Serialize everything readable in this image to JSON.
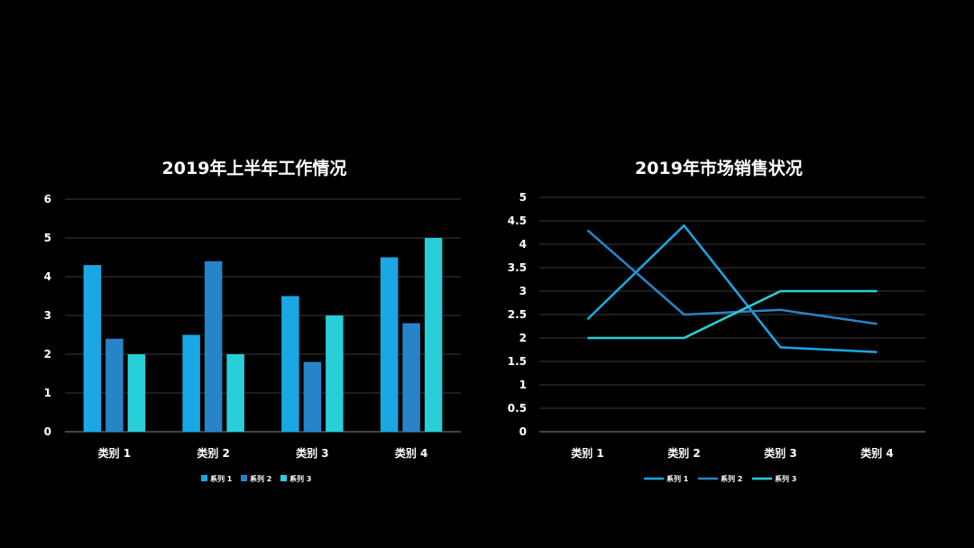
{
  "colors": {
    "background": "#000000",
    "grid": "#3a3a3a",
    "axis": "#8a8a8a",
    "text": "#ffffff"
  },
  "chart_data": [
    {
      "type": "bar",
      "title": "2019年上半年工作情况",
      "categories": [
        "类别 1",
        "类别 2",
        "类别 3",
        "类别 4"
      ],
      "series": [
        {
          "name": "系列 1",
          "color": "#1aa8e4",
          "values": [
            4.3,
            2.5,
            3.5,
            4.5
          ]
        },
        {
          "name": "系列 2",
          "color": "#2884c9",
          "values": [
            2.4,
            4.4,
            1.8,
            2.8
          ]
        },
        {
          "name": "系列 3",
          "color": "#28cfd9",
          "values": [
            2,
            2,
            3,
            5
          ]
        }
      ],
      "ylim": [
        0,
        6
      ],
      "yticks": [
        "0",
        "1",
        "2",
        "3",
        "4",
        "5",
        "6"
      ],
      "grid": true,
      "legend": "bottom"
    },
    {
      "type": "line",
      "title": "2019年市场销售状况",
      "categories": [
        "类别 1",
        "类别 2",
        "类别 3",
        "类别 4"
      ],
      "series": [
        {
          "name": "系列 1",
          "color": "#1aa8e4",
          "values": [
            2.4,
            4.4,
            1.8,
            1.7
          ]
        },
        {
          "name": "系列 2",
          "color": "#2884c9",
          "values": [
            4.3,
            2.5,
            2.6,
            2.3
          ]
        },
        {
          "name": "系列 3",
          "color": "#28cfd9",
          "values": [
            2,
            2,
            3,
            3
          ]
        }
      ],
      "ylim": [
        0,
        5
      ],
      "yticks": [
        "0",
        "0.5",
        "1",
        "1.5",
        "2",
        "2.5",
        "3",
        "3.5",
        "4",
        "4.5",
        "5"
      ],
      "grid": true,
      "legend": "bottom"
    }
  ]
}
